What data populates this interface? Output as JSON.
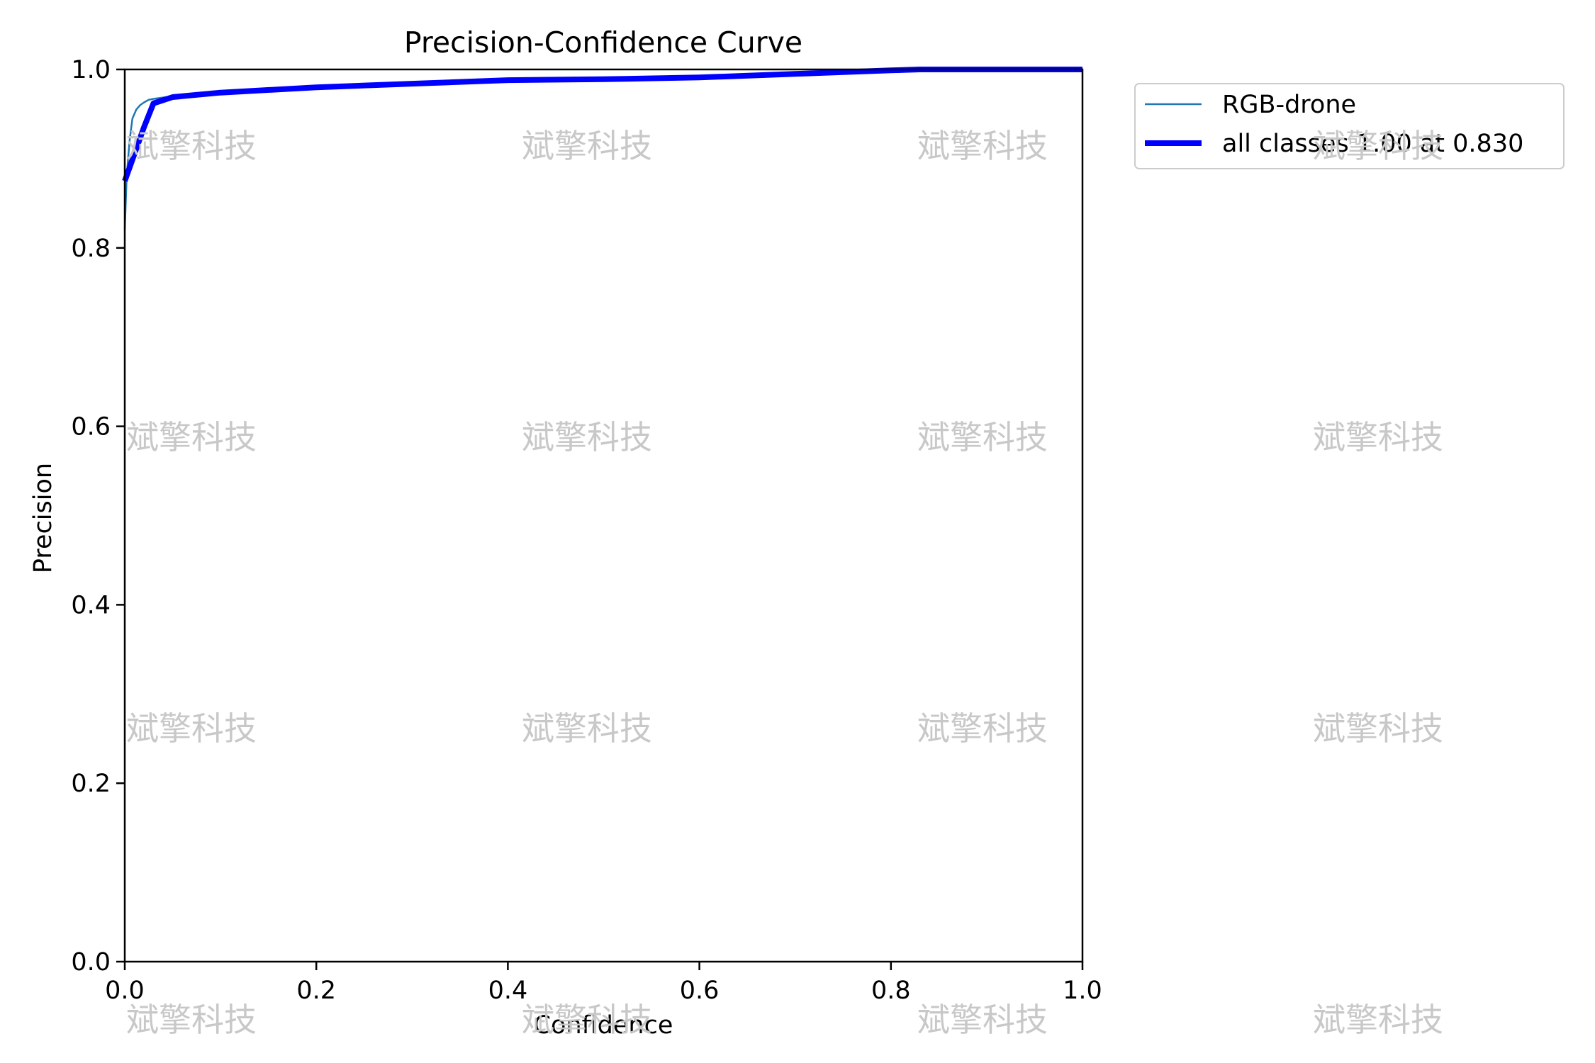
{
  "chart_data": {
    "type": "line",
    "title": "Precision-Confidence Curve",
    "xlabel": "Confidence",
    "ylabel": "Precision",
    "xlim": [
      0.0,
      1.0
    ],
    "ylim": [
      0.0,
      1.0
    ],
    "xticks": [
      "0.0",
      "0.2",
      "0.4",
      "0.6",
      "0.8",
      "1.0"
    ],
    "yticks": [
      "0.0",
      "0.2",
      "0.4",
      "0.6",
      "0.8",
      "1.0"
    ],
    "grid": false,
    "legend_position": "outside-top-right",
    "series": [
      {
        "name": "RGB-drone",
        "color": "#1f77b4",
        "style": "thin",
        "x": [
          0.0,
          0.002,
          0.005,
          0.008,
          0.012,
          0.016,
          0.02,
          0.025,
          0.03,
          0.05,
          0.1,
          0.2,
          0.3,
          0.4,
          0.5,
          0.6,
          0.7,
          0.75,
          0.8,
          0.83,
          0.9,
          1.0
        ],
        "y": [
          0.82,
          0.88,
          0.92,
          0.945,
          0.955,
          0.96,
          0.963,
          0.966,
          0.967,
          0.97,
          0.974,
          0.98,
          0.984,
          0.988,
          0.989,
          0.991,
          0.995,
          0.997,
          0.999,
          1.0,
          1.0,
          1.0
        ]
      },
      {
        "name": "all classes 1.00 at 0.830",
        "color": "#0000ff",
        "style": "thick",
        "x": [
          0.0,
          0.01,
          0.02,
          0.03,
          0.05,
          0.1,
          0.2,
          0.3,
          0.4,
          0.5,
          0.6,
          0.7,
          0.75,
          0.8,
          0.83,
          0.9,
          1.0
        ],
        "y": [
          0.875,
          0.905,
          0.935,
          0.962,
          0.969,
          0.974,
          0.98,
          0.984,
          0.988,
          0.989,
          0.991,
          0.995,
          0.997,
          0.999,
          1.0,
          1.0,
          1.0
        ]
      }
    ]
  },
  "watermark": {
    "text": "斌擎科技",
    "color": "#c8c8c8"
  }
}
